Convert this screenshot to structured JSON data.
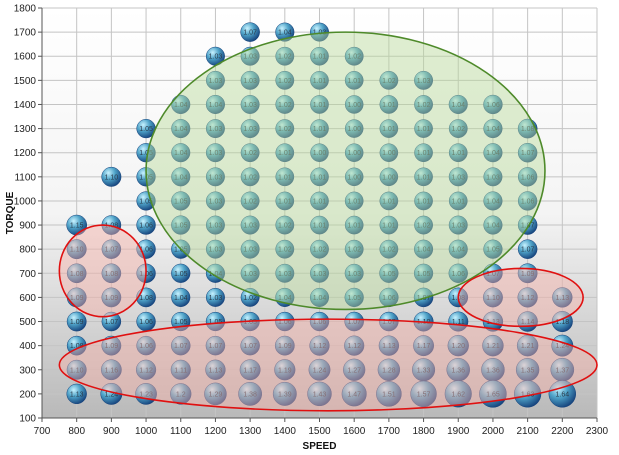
{
  "chart_data": {
    "type": "scatter",
    "subtype": "bubble",
    "title": "",
    "xlabel": "SPEED",
    "ylabel": "TORQUE",
    "xlim": [
      700,
      2300
    ],
    "ylim": [
      100,
      1800
    ],
    "xticks": [
      "700",
      "800",
      "900",
      "1000",
      "1100",
      "1200",
      "1300",
      "1400",
      "1500",
      "1600",
      "1700",
      "1800",
      "1900",
      "2000",
      "2100",
      "2200",
      "2300"
    ],
    "yticks": [
      "100",
      "200",
      "300",
      "400",
      "500",
      "600",
      "700",
      "800",
      "900",
      "1000",
      "1100",
      "1200",
      "1300",
      "1400",
      "1500",
      "1600",
      "1700",
      "1800"
    ],
    "grid": true,
    "colors": {
      "bubble_highlight": "#c8f2ff",
      "bubble_mid": "#4fa3c8",
      "bubble_dark": "#14407a",
      "green_region_fill": "#b7d99a",
      "green_region_stroke": "#4e8a2a",
      "red_region_fill": "#f6b0a6",
      "red_region_stroke": "#e01010"
    },
    "points": [
      {
        "x": 1300,
        "y": 1700,
        "v": "1.07"
      },
      {
        "x": 1400,
        "y": 1700,
        "v": "1.04"
      },
      {
        "x": 1500,
        "y": 1700,
        "v": "1.03"
      },
      {
        "x": 1200,
        "y": 1600,
        "v": "1.03"
      },
      {
        "x": 1300,
        "y": 1600,
        "v": "1.03"
      },
      {
        "x": 1400,
        "y": 1600,
        "v": "1.02"
      },
      {
        "x": 1500,
        "y": 1600,
        "v": "1.01"
      },
      {
        "x": 1600,
        "y": 1600,
        "v": "1.02"
      },
      {
        "x": 1200,
        "y": 1500,
        "v": "1.03"
      },
      {
        "x": 1300,
        "y": 1500,
        "v": "1.03"
      },
      {
        "x": 1400,
        "y": 1500,
        "v": "1.02"
      },
      {
        "x": 1500,
        "y": 1500,
        "v": "1.01"
      },
      {
        "x": 1600,
        "y": 1500,
        "v": "1.01"
      },
      {
        "x": 1700,
        "y": 1500,
        "v": "1.02"
      },
      {
        "x": 1800,
        "y": 1500,
        "v": "1.03"
      },
      {
        "x": 1100,
        "y": 1400,
        "v": "1.04"
      },
      {
        "x": 1200,
        "y": 1400,
        "v": "1.04"
      },
      {
        "x": 1300,
        "y": 1400,
        "v": "1.03"
      },
      {
        "x": 1400,
        "y": 1400,
        "v": "1.02"
      },
      {
        "x": 1500,
        "y": 1400,
        "v": "1.01"
      },
      {
        "x": 1600,
        "y": 1400,
        "v": "1.00"
      },
      {
        "x": 1700,
        "y": 1400,
        "v": "1.01"
      },
      {
        "x": 1800,
        "y": 1400,
        "v": "1.02"
      },
      {
        "x": 1900,
        "y": 1400,
        "v": "1.04"
      },
      {
        "x": 2000,
        "y": 1400,
        "v": "1.06"
      },
      {
        "x": 1000,
        "y": 1300,
        "v": "1.05"
      },
      {
        "x": 1100,
        "y": 1300,
        "v": "1.04"
      },
      {
        "x": 1200,
        "y": 1300,
        "v": "1.03"
      },
      {
        "x": 1300,
        "y": 1300,
        "v": "1.03"
      },
      {
        "x": 1400,
        "y": 1300,
        "v": "1.02"
      },
      {
        "x": 1500,
        "y": 1300,
        "v": "1.01"
      },
      {
        "x": 1600,
        "y": 1300,
        "v": "1.00"
      },
      {
        "x": 1700,
        "y": 1300,
        "v": "1.01"
      },
      {
        "x": 1800,
        "y": 1300,
        "v": "1.01"
      },
      {
        "x": 1900,
        "y": 1300,
        "v": "1.02"
      },
      {
        "x": 2000,
        "y": 1300,
        "v": "1.04"
      },
      {
        "x": 2100,
        "y": 1300,
        "v": "1.08"
      },
      {
        "x": 1000,
        "y": 1200,
        "v": "1.05"
      },
      {
        "x": 1100,
        "y": 1200,
        "v": "1.04"
      },
      {
        "x": 1200,
        "y": 1200,
        "v": "1.03"
      },
      {
        "x": 1300,
        "y": 1200,
        "v": "1.02"
      },
      {
        "x": 1400,
        "y": 1200,
        "v": "1.01"
      },
      {
        "x": 1500,
        "y": 1200,
        "v": "1.00"
      },
      {
        "x": 1600,
        "y": 1200,
        "v": "1.00"
      },
      {
        "x": 1700,
        "y": 1200,
        "v": "1.00"
      },
      {
        "x": 1800,
        "y": 1200,
        "v": "1.01"
      },
      {
        "x": 1900,
        "y": 1200,
        "v": "1.01"
      },
      {
        "x": 2000,
        "y": 1200,
        "v": "1.04"
      },
      {
        "x": 2100,
        "y": 1200,
        "v": "1.07"
      },
      {
        "x": 900,
        "y": 1100,
        "v": "1.10"
      },
      {
        "x": 1000,
        "y": 1100,
        "v": "1.05"
      },
      {
        "x": 1100,
        "y": 1100,
        "v": "1.04"
      },
      {
        "x": 1200,
        "y": 1100,
        "v": "1.03"
      },
      {
        "x": 1300,
        "y": 1100,
        "v": "1.02"
      },
      {
        "x": 1400,
        "y": 1100,
        "v": "1.01"
      },
      {
        "x": 1500,
        "y": 1100,
        "v": "1.01"
      },
      {
        "x": 1600,
        "y": 1100,
        "v": "1.00"
      },
      {
        "x": 1700,
        "y": 1100,
        "v": "1.00"
      },
      {
        "x": 1800,
        "y": 1100,
        "v": "1.01"
      },
      {
        "x": 1900,
        "y": 1100,
        "v": "1.03"
      },
      {
        "x": 2000,
        "y": 1100,
        "v": "1.03"
      },
      {
        "x": 2100,
        "y": 1100,
        "v": "1.06"
      },
      {
        "x": 1000,
        "y": 1000,
        "v": "1.05"
      },
      {
        "x": 1100,
        "y": 1000,
        "v": "1.05"
      },
      {
        "x": 1200,
        "y": 1000,
        "v": "1.03"
      },
      {
        "x": 1300,
        "y": 1000,
        "v": "1.02"
      },
      {
        "x": 1400,
        "y": 1000,
        "v": "1.01"
      },
      {
        "x": 1500,
        "y": 1000,
        "v": "1.01"
      },
      {
        "x": 1600,
        "y": 1000,
        "v": "1.01"
      },
      {
        "x": 1700,
        "y": 1000,
        "v": "1.01"
      },
      {
        "x": 1800,
        "y": 1000,
        "v": "1.01"
      },
      {
        "x": 1900,
        "y": 1000,
        "v": "1.01"
      },
      {
        "x": 2000,
        "y": 1000,
        "v": "1.04"
      },
      {
        "x": 2100,
        "y": 1000,
        "v": "1.06"
      },
      {
        "x": 800,
        "y": 900,
        "v": "1.15"
      },
      {
        "x": 900,
        "y": 900,
        "v": "1.08"
      },
      {
        "x": 1000,
        "y": 900,
        "v": "1.06"
      },
      {
        "x": 1100,
        "y": 900,
        "v": "1.05"
      },
      {
        "x": 1200,
        "y": 900,
        "v": "1.03"
      },
      {
        "x": 1300,
        "y": 900,
        "v": "1.03"
      },
      {
        "x": 1400,
        "y": 900,
        "v": "1.02"
      },
      {
        "x": 1500,
        "y": 900,
        "v": "1.01"
      },
      {
        "x": 1600,
        "y": 900,
        "v": "1.01"
      },
      {
        "x": 1700,
        "y": 900,
        "v": "1.01"
      },
      {
        "x": 1800,
        "y": 900,
        "v": "1.02"
      },
      {
        "x": 1900,
        "y": 900,
        "v": "1.03"
      },
      {
        "x": 2000,
        "y": 900,
        "v": "1.04"
      },
      {
        "x": 2100,
        "y": 900,
        "v": "1.07"
      },
      {
        "x": 800,
        "y": 800,
        "v": "1.10"
      },
      {
        "x": 900,
        "y": 800,
        "v": "1.07"
      },
      {
        "x": 1000,
        "y": 800,
        "v": "1.06"
      },
      {
        "x": 1100,
        "y": 800,
        "v": "1.05"
      },
      {
        "x": 1200,
        "y": 800,
        "v": "1.03"
      },
      {
        "x": 1300,
        "y": 800,
        "v": "1.03"
      },
      {
        "x": 1400,
        "y": 800,
        "v": "1.02"
      },
      {
        "x": 1500,
        "y": 800,
        "v": "1.02"
      },
      {
        "x": 1600,
        "y": 800,
        "v": "1.02"
      },
      {
        "x": 1700,
        "y": 800,
        "v": "1.02"
      },
      {
        "x": 1800,
        "y": 800,
        "v": "1.04"
      },
      {
        "x": 1900,
        "y": 800,
        "v": "1.04"
      },
      {
        "x": 2000,
        "y": 800,
        "v": "1.05"
      },
      {
        "x": 2100,
        "y": 800,
        "v": "1.07"
      },
      {
        "x": 800,
        "y": 700,
        "v": "1.08"
      },
      {
        "x": 900,
        "y": 700,
        "v": "1.08"
      },
      {
        "x": 1000,
        "y": 700,
        "v": "1.06"
      },
      {
        "x": 1100,
        "y": 700,
        "v": "1.05"
      },
      {
        "x": 1200,
        "y": 700,
        "v": "1.04"
      },
      {
        "x": 1300,
        "y": 700,
        "v": "1.03"
      },
      {
        "x": 1400,
        "y": 700,
        "v": "1.03"
      },
      {
        "x": 1500,
        "y": 700,
        "v": "1.03"
      },
      {
        "x": 1600,
        "y": 700,
        "v": "1.03"
      },
      {
        "x": 1700,
        "y": 700,
        "v": "1.05"
      },
      {
        "x": 1800,
        "y": 700,
        "v": "1.05"
      },
      {
        "x": 1900,
        "y": 700,
        "v": "1.06"
      },
      {
        "x": 2000,
        "y": 700,
        "v": "1.07"
      },
      {
        "x": 2100,
        "y": 700,
        "v": "1.09"
      },
      {
        "x": 800,
        "y": 600,
        "v": "1.09"
      },
      {
        "x": 900,
        "y": 600,
        "v": "1.09"
      },
      {
        "x": 1000,
        "y": 600,
        "v": "1.08"
      },
      {
        "x": 1100,
        "y": 600,
        "v": "1.04"
      },
      {
        "x": 1200,
        "y": 600,
        "v": "1.03"
      },
      {
        "x": 1300,
        "y": 600,
        "v": "1.02"
      },
      {
        "x": 1400,
        "y": 600,
        "v": "1.04"
      },
      {
        "x": 1500,
        "y": 600,
        "v": "1.04"
      },
      {
        "x": 1600,
        "y": 600,
        "v": "1.05"
      },
      {
        "x": 1700,
        "y": 600,
        "v": "1.06"
      },
      {
        "x": 1800,
        "y": 600,
        "v": "1.07"
      },
      {
        "x": 1900,
        "y": 600,
        "v": "1.08"
      },
      {
        "x": 2000,
        "y": 600,
        "v": "1.10"
      },
      {
        "x": 2100,
        "y": 600,
        "v": "1.12"
      },
      {
        "x": 2200,
        "y": 600,
        "v": "1.13"
      },
      {
        "x": 800,
        "y": 500,
        "v": "1.09"
      },
      {
        "x": 900,
        "y": 500,
        "v": "1.07"
      },
      {
        "x": 1000,
        "y": 500,
        "v": "1.06"
      },
      {
        "x": 1100,
        "y": 500,
        "v": "1.05"
      },
      {
        "x": 1200,
        "y": 500,
        "v": "1.05"
      },
      {
        "x": 1300,
        "y": 500,
        "v": "1.05"
      },
      {
        "x": 1400,
        "y": 500,
        "v": "1.06"
      },
      {
        "x": 1500,
        "y": 500,
        "v": "1.06"
      },
      {
        "x": 1600,
        "y": 500,
        "v": "1.07"
      },
      {
        "x": 1700,
        "y": 500,
        "v": "1.07"
      },
      {
        "x": 1800,
        "y": 500,
        "v": "1.10"
      },
      {
        "x": 1900,
        "y": 500,
        "v": "1.11"
      },
      {
        "x": 2000,
        "y": 500,
        "v": "1.13"
      },
      {
        "x": 2100,
        "y": 500,
        "v": "1.14"
      },
      {
        "x": 2200,
        "y": 500,
        "v": "1.18"
      },
      {
        "x": 800,
        "y": 400,
        "v": "1.08"
      },
      {
        "x": 900,
        "y": 400,
        "v": "1.09"
      },
      {
        "x": 1000,
        "y": 400,
        "v": "1.06"
      },
      {
        "x": 1100,
        "y": 400,
        "v": "1.07"
      },
      {
        "x": 1200,
        "y": 400,
        "v": "1.07"
      },
      {
        "x": 1300,
        "y": 400,
        "v": "1.07"
      },
      {
        "x": 1400,
        "y": 400,
        "v": "1.09"
      },
      {
        "x": 1500,
        "y": 400,
        "v": "1.12"
      },
      {
        "x": 1600,
        "y": 400,
        "v": "1.12"
      },
      {
        "x": 1700,
        "y": 400,
        "v": "1.13"
      },
      {
        "x": 1800,
        "y": 400,
        "v": "1.17"
      },
      {
        "x": 1900,
        "y": 400,
        "v": "1.20"
      },
      {
        "x": 2000,
        "y": 400,
        "v": "1.21"
      },
      {
        "x": 2100,
        "y": 400,
        "v": "1.21"
      },
      {
        "x": 2200,
        "y": 400,
        "v": "1.24"
      },
      {
        "x": 800,
        "y": 300,
        "v": "1.10"
      },
      {
        "x": 900,
        "y": 300,
        "v": "1.16"
      },
      {
        "x": 1000,
        "y": 300,
        "v": "1.12"
      },
      {
        "x": 1100,
        "y": 300,
        "v": "1.11"
      },
      {
        "x": 1200,
        "y": 300,
        "v": "1.13"
      },
      {
        "x": 1300,
        "y": 300,
        "v": "1.17"
      },
      {
        "x": 1400,
        "y": 300,
        "v": "1.19"
      },
      {
        "x": 1500,
        "y": 300,
        "v": "1.24"
      },
      {
        "x": 1600,
        "y": 300,
        "v": "1.27"
      },
      {
        "x": 1700,
        "y": 300,
        "v": "1.28"
      },
      {
        "x": 1800,
        "y": 300,
        "v": "1.33"
      },
      {
        "x": 1900,
        "y": 300,
        "v": "1.36"
      },
      {
        "x": 2000,
        "y": 300,
        "v": "1.36"
      },
      {
        "x": 2100,
        "y": 300,
        "v": "1.35"
      },
      {
        "x": 2200,
        "y": 300,
        "v": "1.37"
      },
      {
        "x": 800,
        "y": 200,
        "v": "1.13"
      },
      {
        "x": 900,
        "y": 200,
        "v": "1.24"
      },
      {
        "x": 1000,
        "y": 200,
        "v": "1.23"
      },
      {
        "x": 1100,
        "y": 200,
        "v": "1.2"
      },
      {
        "x": 1200,
        "y": 200,
        "v": "1.29"
      },
      {
        "x": 1300,
        "y": 200,
        "v": "1.38"
      },
      {
        "x": 1400,
        "y": 200,
        "v": "1.39"
      },
      {
        "x": 1500,
        "y": 200,
        "v": "1.43"
      },
      {
        "x": 1600,
        "y": 200,
        "v": "1.47"
      },
      {
        "x": 1700,
        "y": 200,
        "v": "1.51"
      },
      {
        "x": 1800,
        "y": 200,
        "v": "1.57"
      },
      {
        "x": 1900,
        "y": 200,
        "v": "1.62"
      },
      {
        "x": 2000,
        "y": 200,
        "v": "1.65"
      },
      {
        "x": 2100,
        "y": 200,
        "v": "1.63"
      },
      {
        "x": 2200,
        "y": 200,
        "v": "1.64"
      }
    ],
    "regions": [
      {
        "color": "green",
        "x": [
          1000,
          2150
        ],
        "y": [
          550,
          1700
        ]
      },
      {
        "color": "red",
        "x": [
          750,
          1000
        ],
        "y": [
          520,
          900
        ]
      },
      {
        "color": "red",
        "x": [
          1900,
          2260
        ],
        "y": [
          480,
          720
        ]
      },
      {
        "color": "red",
        "x": [
          750,
          2300
        ],
        "y": [
          130,
          510
        ]
      }
    ]
  }
}
